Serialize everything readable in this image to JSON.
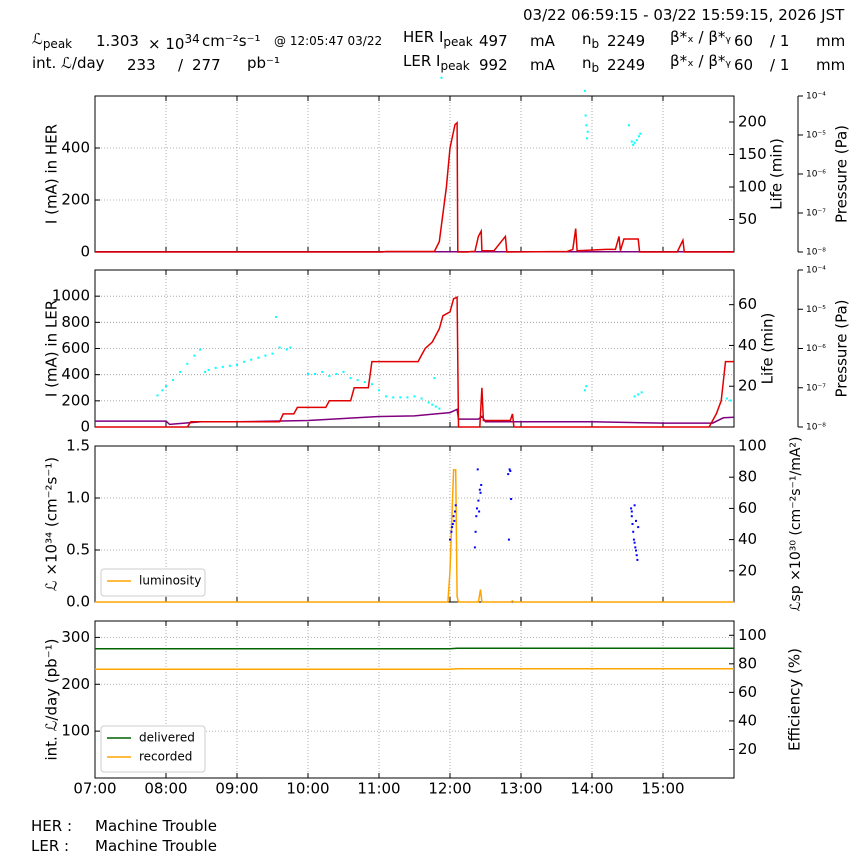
{
  "header": {
    "time_range": "03/22 06:59:15 - 03/22 15:59:15, 2026 JST",
    "lpeak_label": "ℒ",
    "lpeak_sub": "peak",
    "lpeak_value": "1.303",
    "lpeak_exp": "× 10",
    "lpeak_exp_pow": "34",
    "lpeak_unit": "cm⁻²s⁻¹",
    "lpeak_time": "@ 12:05:47 03/22",
    "intl_label": "int. ℒ/day",
    "intl_recorded": "233",
    "intl_sep": "/",
    "intl_delivered": "277",
    "intl_unit": "pb⁻¹",
    "her_label": "HER I",
    "her_sub": "peak",
    "her_value": "497",
    "her_unit": "mA",
    "her_nb_label": "n",
    "her_nb_sub": "b",
    "her_nb": "2249",
    "her_beta_label": "β*ₓ / β*ᵧ",
    "her_beta_x": "60",
    "her_beta_y": "/ 1",
    "her_beta_unit": "mm",
    "ler_label": "LER I",
    "ler_sub": "peak",
    "ler_value": "992",
    "ler_unit": "mA",
    "ler_nb_label": "n",
    "ler_nb_sub": "b",
    "ler_nb": "2249",
    "ler_beta_label": "β*ₓ / β*ᵧ",
    "ler_beta_x": "60",
    "ler_beta_y": "/ 1",
    "ler_beta_unit": "mm"
  },
  "footer": {
    "her_label": "HER :",
    "her_status": "Machine Trouble",
    "ler_label": "LER :",
    "ler_status": "Machine Trouble"
  },
  "colors": {
    "current": "#e00000",
    "life": "#00ffff",
    "pressure": "#800080",
    "luminosity": "#ffa500",
    "specific": "#0000ff",
    "delivered": "#006400",
    "recorded": "#ffa500"
  },
  "chart_data": [
    {
      "type": "line",
      "panel": "her",
      "x_unit": "hour",
      "xlim": [
        7.0,
        16.0
      ],
      "xticks": [
        7,
        8,
        9,
        10,
        11,
        12,
        13,
        14,
        15
      ],
      "xticklabels": [
        "07:00",
        "08:00",
        "09:00",
        "10:00",
        "11:00",
        "12:00",
        "13:00",
        "14:00",
        "15:00"
      ],
      "ylabel": "I (mA) in HER",
      "ylim": [
        0,
        600
      ],
      "yticks": [
        0,
        200,
        400
      ],
      "y2label": "Life (min)",
      "y2lim": [
        0,
        240
      ],
      "y2ticks": [
        50,
        100,
        150,
        200
      ],
      "y3label": "Pressure (Pa)",
      "y3ticks": [
        "10⁻⁸",
        "10⁻⁷",
        "10⁻⁶",
        "10⁻⁵",
        "10⁻⁴"
      ],
      "current": [
        [
          7.0,
          0
        ],
        [
          11.05,
          0
        ],
        [
          11.1,
          2
        ],
        [
          11.78,
          2
        ],
        [
          11.85,
          40
        ],
        [
          11.95,
          250
        ],
        [
          12.0,
          400
        ],
        [
          12.07,
          490
        ],
        [
          12.1,
          497
        ],
        [
          12.11,
          0
        ],
        [
          12.25,
          0
        ],
        [
          12.3,
          2
        ],
        [
          12.35,
          2
        ],
        [
          12.4,
          60
        ],
        [
          12.44,
          80
        ],
        [
          12.45,
          5
        ],
        [
          12.62,
          5
        ],
        [
          12.78,
          60
        ],
        [
          12.8,
          0
        ],
        [
          13.65,
          2
        ],
        [
          13.73,
          10
        ],
        [
          13.77,
          90
        ],
        [
          13.79,
          5
        ],
        [
          14.2,
          10
        ],
        [
          14.33,
          10
        ],
        [
          14.38,
          60
        ],
        [
          14.4,
          5
        ],
        [
          14.45,
          50
        ],
        [
          14.65,
          50
        ],
        [
          14.67,
          0
        ],
        [
          15.2,
          0
        ],
        [
          15.28,
          45
        ],
        [
          15.3,
          0
        ],
        [
          16.0,
          0
        ]
      ],
      "pressure": [
        [
          7.0,
          1
        ],
        [
          16.0,
          1
        ]
      ],
      "life": [
        [
          11.88,
          268
        ],
        [
          13.9,
          248
        ],
        [
          13.92,
          195
        ],
        [
          13.94,
          185
        ],
        [
          13.91,
          210
        ],
        [
          13.93,
          175
        ],
        [
          14.52,
          195
        ],
        [
          14.56,
          170
        ],
        [
          14.58,
          165
        ],
        [
          14.6,
          168
        ],
        [
          14.63,
          172
        ],
        [
          14.66,
          178
        ],
        [
          14.68,
          182
        ]
      ]
    },
    {
      "type": "line",
      "panel": "ler",
      "x_unit": "hour",
      "xlim": [
        7.0,
        16.0
      ],
      "ylabel": "I (mA) in LER",
      "ylim": [
        0,
        1200
      ],
      "yticks": [
        0,
        200,
        400,
        600,
        800,
        1000
      ],
      "y2label": "Life (min)",
      "y2lim": [
        0,
        77
      ],
      "y2ticks": [
        20,
        40,
        60
      ],
      "y3label": "Pressure (Pa)",
      "y3ticks": [
        "10⁻⁸",
        "10⁻⁷",
        "10⁻⁶",
        "10⁻⁵",
        "10⁻⁴"
      ],
      "current": [
        [
          7.0,
          0
        ],
        [
          8.3,
          0
        ],
        [
          8.35,
          40
        ],
        [
          9.6,
          40
        ],
        [
          9.65,
          100
        ],
        [
          9.8,
          100
        ],
        [
          9.85,
          150
        ],
        [
          10.25,
          150
        ],
        [
          10.3,
          200
        ],
        [
          10.6,
          200
        ],
        [
          10.65,
          300
        ],
        [
          10.85,
          300
        ],
        [
          10.9,
          500
        ],
        [
          11.55,
          500
        ],
        [
          11.6,
          550
        ],
        [
          11.65,
          600
        ],
        [
          11.75,
          650
        ],
        [
          11.8,
          700
        ],
        [
          11.85,
          750
        ],
        [
          11.9,
          850
        ],
        [
          12.0,
          880
        ],
        [
          12.05,
          980
        ],
        [
          12.1,
          992
        ],
        [
          12.12,
          0
        ],
        [
          12.42,
          0
        ],
        [
          12.45,
          300
        ],
        [
          12.47,
          50
        ],
        [
          12.85,
          50
        ],
        [
          12.88,
          100
        ],
        [
          12.9,
          0
        ],
        [
          15.65,
          0
        ],
        [
          15.75,
          100
        ],
        [
          15.82,
          200
        ],
        [
          15.88,
          500
        ],
        [
          16.0,
          500
        ]
      ],
      "pressure": [
        [
          7.0,
          45
        ],
        [
          8.0,
          45
        ],
        [
          8.05,
          20
        ],
        [
          8.5,
          40
        ],
        [
          9.0,
          40
        ],
        [
          10.0,
          50
        ],
        [
          10.5,
          65
        ],
        [
          11.0,
          80
        ],
        [
          11.5,
          85
        ],
        [
          11.8,
          100
        ],
        [
          12.0,
          110
        ],
        [
          12.1,
          135
        ],
        [
          12.12,
          60
        ],
        [
          12.4,
          60
        ],
        [
          12.45,
          80
        ],
        [
          12.5,
          40
        ],
        [
          13.0,
          40
        ],
        [
          14.0,
          40
        ],
        [
          15.0,
          30
        ],
        [
          15.7,
          30
        ],
        [
          15.85,
          70
        ],
        [
          16.0,
          75
        ]
      ],
      "life": [
        [
          7.88,
          15.5
        ],
        [
          7.95,
          18
        ],
        [
          8.0,
          20
        ],
        [
          8.1,
          23
        ],
        [
          8.2,
          27
        ],
        [
          8.3,
          31
        ],
        [
          8.4,
          35
        ],
        [
          8.48,
          38
        ],
        [
          8.55,
          27
        ],
        [
          8.6,
          28
        ],
        [
          8.7,
          29
        ],
        [
          8.8,
          29.5
        ],
        [
          8.9,
          30
        ],
        [
          9.0,
          30.5
        ],
        [
          9.1,
          32
        ],
        [
          9.2,
          33
        ],
        [
          9.3,
          34
        ],
        [
          9.4,
          35
        ],
        [
          9.5,
          36
        ],
        [
          9.55,
          54
        ],
        [
          9.6,
          39
        ],
        [
          9.7,
          38
        ],
        [
          9.75,
          39
        ],
        [
          10.0,
          26
        ],
        [
          10.1,
          26
        ],
        [
          10.2,
          27
        ],
        [
          10.3,
          25
        ],
        [
          10.4,
          26
        ],
        [
          10.5,
          27
        ],
        [
          10.6,
          24
        ],
        [
          10.7,
          23
        ],
        [
          10.8,
          22
        ],
        [
          10.9,
          21
        ],
        [
          11.0,
          18
        ],
        [
          11.1,
          15
        ],
        [
          11.2,
          14.5
        ],
        [
          11.3,
          14.5
        ],
        [
          11.4,
          14.5
        ],
        [
          11.5,
          15
        ],
        [
          11.6,
          14
        ],
        [
          11.7,
          12
        ],
        [
          11.75,
          11
        ],
        [
          11.8,
          10
        ],
        [
          11.85,
          9
        ],
        [
          11.78,
          24
        ],
        [
          13.92,
          20
        ],
        [
          13.9,
          18
        ],
        [
          14.6,
          15
        ],
        [
          14.65,
          16
        ],
        [
          14.7,
          17
        ],
        [
          15.9,
          14
        ],
        [
          15.95,
          13
        ]
      ]
    },
    {
      "type": "line",
      "panel": "luminosity",
      "x_unit": "hour",
      "xlim": [
        7.0,
        16.0
      ],
      "ylabel": "ℒ ×10³⁴ (cm⁻²s⁻¹)",
      "ylim": [
        0,
        1.5
      ],
      "yticks": [
        0.0,
        0.5,
        1.0,
        1.5
      ],
      "yticklabels": [
        "0.0",
        "0.5",
        "1.0",
        "1.5"
      ],
      "y2label": "ℒsp ×10³⁰ (cm⁻²s⁻¹/mA²)",
      "y2lim": [
        0,
        100
      ],
      "y2ticks": [
        20,
        40,
        60,
        80,
        100
      ],
      "legend": [
        "luminosity"
      ],
      "legend_loc": "lower-left",
      "luminosity": [
        [
          7.0,
          0
        ],
        [
          11.97,
          0
        ],
        [
          12.0,
          0.3
        ],
        [
          12.05,
          1.27
        ],
        [
          12.08,
          1.27
        ],
        [
          12.1,
          0.05
        ],
        [
          12.12,
          0
        ],
        [
          12.4,
          0
        ],
        [
          12.43,
          0.12
        ],
        [
          12.45,
          0
        ],
        [
          12.85,
          0
        ],
        [
          12.88,
          0.01
        ],
        [
          12.9,
          0
        ],
        [
          16.0,
          0
        ]
      ],
      "specific": [
        [
          12.0,
          40
        ],
        [
          12.02,
          45
        ],
        [
          12.04,
          50
        ],
        [
          12.05,
          55
        ],
        [
          12.06,
          52
        ],
        [
          12.07,
          58
        ],
        [
          12.08,
          62
        ],
        [
          12.03,
          48
        ],
        [
          12.35,
          35
        ],
        [
          12.37,
          55
        ],
        [
          12.38,
          60
        ],
        [
          12.4,
          65
        ],
        [
          12.42,
          72
        ],
        [
          12.39,
          85
        ],
        [
          12.43,
          70
        ],
        [
          12.41,
          58
        ],
        [
          12.44,
          75
        ],
        [
          12.36,
          45
        ],
        [
          12.82,
          82
        ],
        [
          12.84,
          85
        ],
        [
          12.86,
          66
        ],
        [
          12.85,
          84
        ],
        [
          12.83,
          40
        ],
        [
          14.55,
          60
        ],
        [
          14.56,
          55
        ],
        [
          14.57,
          50
        ],
        [
          14.58,
          45
        ],
        [
          14.59,
          40
        ],
        [
          14.6,
          38
        ],
        [
          14.61,
          35
        ],
        [
          14.62,
          33
        ],
        [
          14.63,
          30
        ],
        [
          14.64,
          27
        ],
        [
          14.65,
          48
        ],
        [
          14.56,
          58
        ],
        [
          14.6,
          62
        ],
        [
          14.62,
          52
        ]
      ]
    },
    {
      "type": "line",
      "panel": "integrated",
      "x_unit": "hour",
      "xlim": [
        7.0,
        16.0
      ],
      "xticks": [
        7,
        8,
        9,
        10,
        11,
        12,
        13,
        14,
        15
      ],
      "xticklabels": [
        "07:00",
        "08:00",
        "09:00",
        "10:00",
        "11:00",
        "12:00",
        "13:00",
        "14:00",
        "15:00"
      ],
      "ylabel": "int. ℒ/day (pb⁻¹)",
      "ylim": [
        0,
        335
      ],
      "yticks": [
        100,
        200,
        300
      ],
      "y2label": "Efficiency (%)",
      "y2lim": [
        0,
        110
      ],
      "y2ticks": [
        20,
        40,
        60,
        80,
        100
      ],
      "legend": [
        "delivered",
        "recorded"
      ],
      "legend_loc": "lower-left",
      "delivered": [
        [
          7.0,
          276
        ],
        [
          12.0,
          276
        ],
        [
          12.1,
          277
        ],
        [
          16.0,
          277
        ]
      ],
      "recorded": [
        [
          7.0,
          232
        ],
        [
          12.0,
          232
        ],
        [
          12.1,
          233
        ],
        [
          16.0,
          233
        ]
      ]
    }
  ]
}
